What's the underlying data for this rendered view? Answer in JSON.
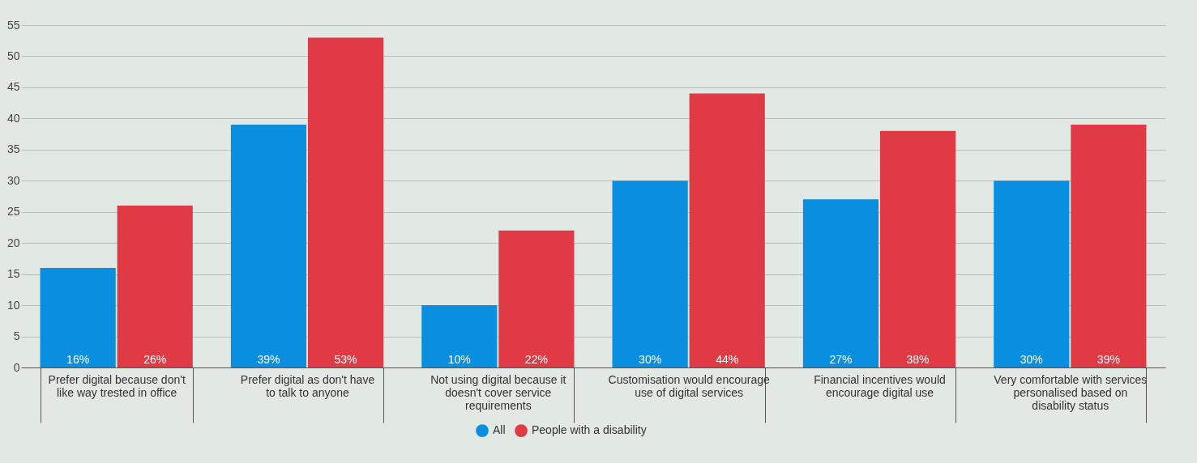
{
  "chart_data": {
    "type": "bar",
    "categories": [
      "Prefer digital because don't like way trested in office",
      "Prefer digital as don't have to talk to anyone",
      "Not using digital because it doesn't cover service requirements",
      "Customisation would encourage use of digital services",
      "Financial incentives would encourage digital use",
      "Very comfortable with services personalised based on disability status"
    ],
    "series": [
      {
        "name": "All",
        "color": "#0a8fe0",
        "values": [
          16,
          39,
          10,
          30,
          27,
          30
        ],
        "value_labels": [
          "16%",
          "39%",
          "10%",
          "30%",
          "27%",
          "30%"
        ]
      },
      {
        "name": "People with a disability",
        "color": "#e03a45",
        "values": [
          26,
          53,
          22,
          44,
          38,
          39
        ],
        "value_labels": [
          "26%",
          "53%",
          "22%",
          "44%",
          "38%",
          "39%"
        ]
      }
    ],
    "ylim": [
      0,
      55
    ],
    "yticks": [
      0,
      5,
      10,
      15,
      20,
      25,
      30,
      35,
      40,
      45,
      50,
      55
    ],
    "grid": "y",
    "legend": "bottom"
  }
}
